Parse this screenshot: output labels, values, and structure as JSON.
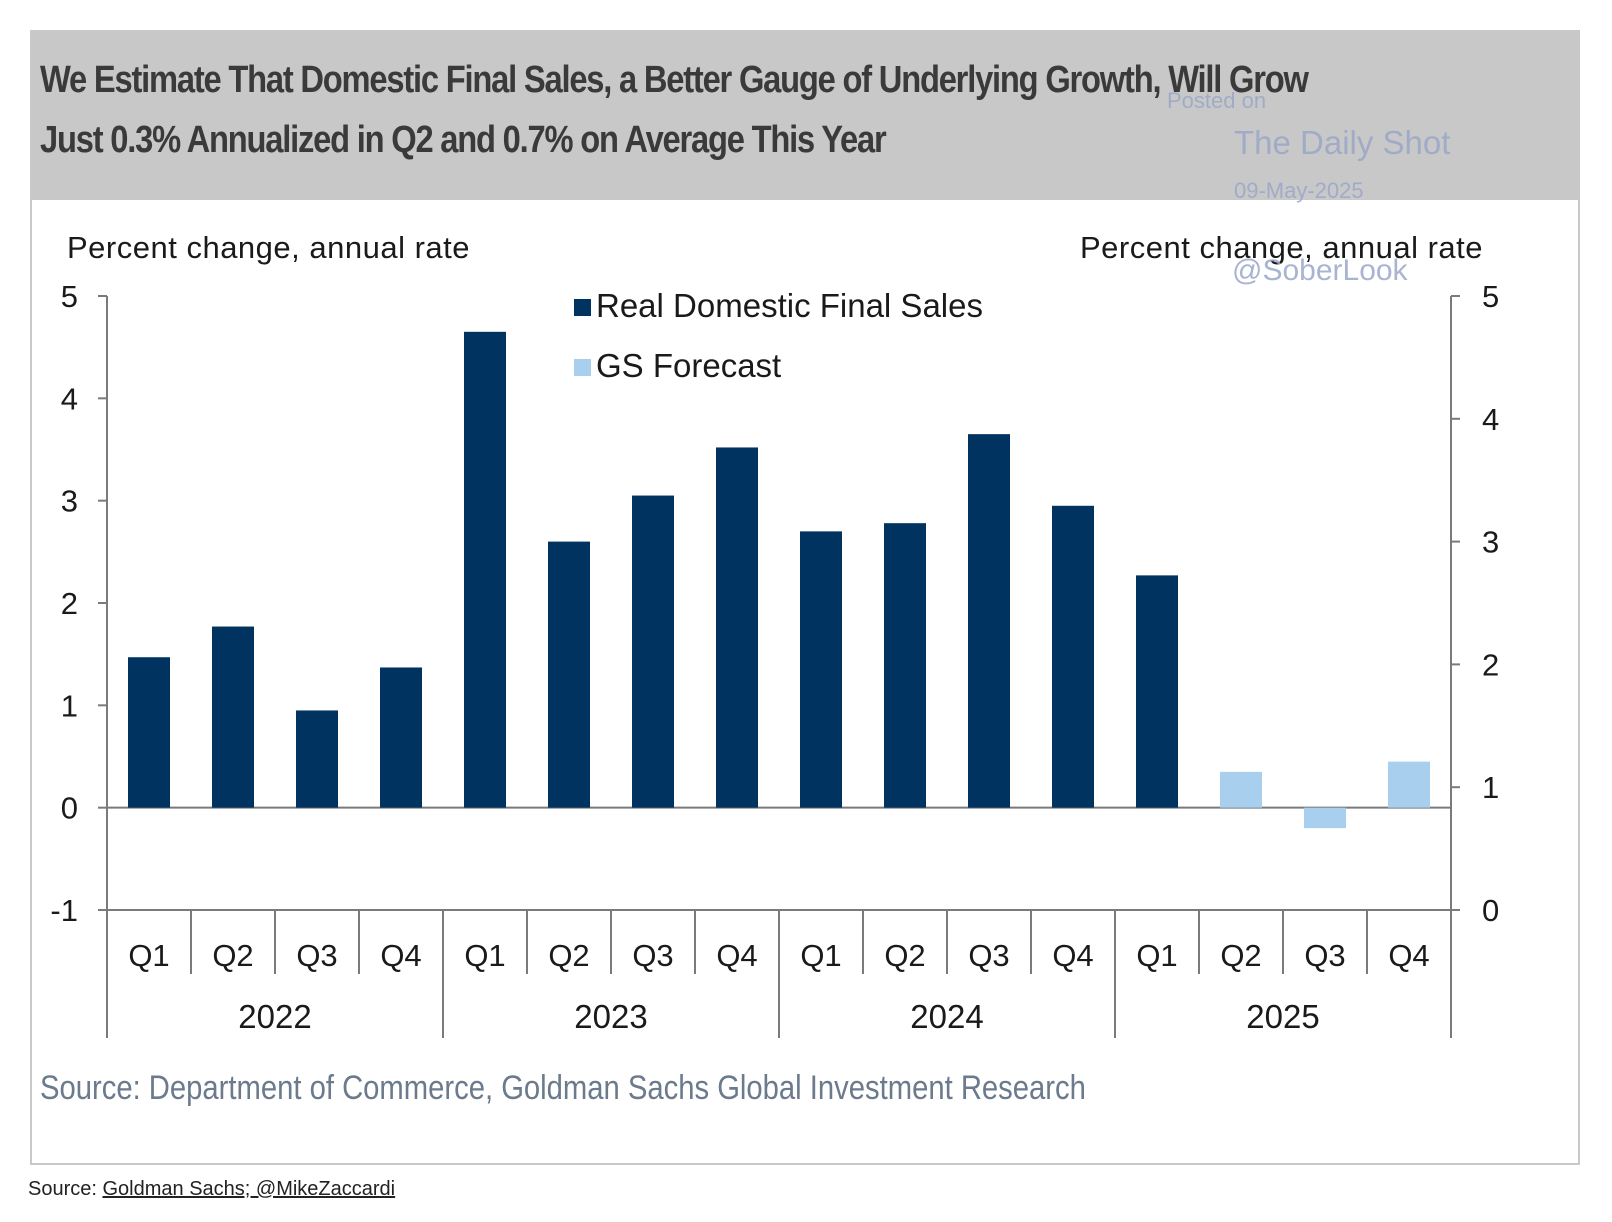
{
  "chart_data": {
    "type": "bar",
    "title": "We Estimate That Domestic Final Sales, a Better Gauge of Underlying Growth, Will Grow\nJust 0.3% Annualized in Q2 and 0.7% on Average This Year",
    "ylabel_left": "Percent change, annual rate",
    "ylabel_right": "Percent change, annual rate",
    "ylim_left": [
      -1,
      5
    ],
    "ylim_right": [
      0,
      5
    ],
    "yticks_left": [
      "5",
      "4",
      "3",
      "2",
      "1",
      "0",
      "-1"
    ],
    "yticks_right": [
      "5",
      "4",
      "3",
      "2",
      "1",
      "0"
    ],
    "categories": [
      "Q1",
      "Q2",
      "Q3",
      "Q4",
      "Q1",
      "Q2",
      "Q3",
      "Q4",
      "Q1",
      "Q2",
      "Q3",
      "Q4",
      "Q1",
      "Q2",
      "Q3",
      "Q4"
    ],
    "years": [
      "2022",
      "2023",
      "2024",
      "2025"
    ],
    "series": [
      {
        "name": "Real Domestic Final Sales",
        "color": "#00335f",
        "values": [
          1.47,
          1.77,
          0.95,
          1.37,
          4.65,
          2.6,
          3.05,
          3.52,
          2.7,
          2.78,
          3.65,
          2.95,
          2.27,
          null,
          null,
          null
        ]
      },
      {
        "name": "GS Forecast",
        "color": "#a8d0ee",
        "values": [
          null,
          null,
          null,
          null,
          null,
          null,
          null,
          null,
          null,
          null,
          null,
          null,
          null,
          0.35,
          -0.2,
          0.45
        ]
      }
    ],
    "legend_position": "top-center",
    "grid": false,
    "source": "Source: Department of Commerce, Goldman Sachs Global Investment Research"
  },
  "watermark": {
    "posted_on": "Posted on",
    "brand": "The Daily Shot",
    "date": "09-May-2025",
    "handle": "@SoberLook"
  },
  "footer": {
    "label": "Source: ",
    "link_text": "Goldman Sachs; @MikeZaccardi"
  }
}
